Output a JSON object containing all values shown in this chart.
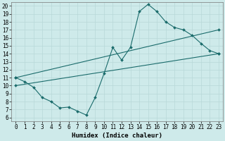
{
  "xlabel": "Humidex (Indice chaleur)",
  "bg_color": "#ceeaea",
  "grid_color": "#b8d8d8",
  "line_color": "#1a6b6b",
  "xlim": [
    -0.5,
    23.5
  ],
  "ylim": [
    5.5,
    20.5
  ],
  "xticks": [
    0,
    1,
    2,
    3,
    4,
    5,
    6,
    7,
    8,
    9,
    10,
    11,
    12,
    13,
    14,
    15,
    16,
    17,
    18,
    19,
    20,
    21,
    22,
    23
  ],
  "yticks": [
    6,
    7,
    8,
    9,
    10,
    11,
    12,
    13,
    14,
    15,
    16,
    17,
    18,
    19,
    20
  ],
  "line1_x": [
    0,
    1,
    2,
    3,
    4,
    5,
    6,
    7,
    8,
    9,
    10,
    11,
    12,
    13,
    14,
    15,
    16,
    17,
    18,
    19,
    20,
    21,
    22,
    23
  ],
  "line1_y": [
    11.0,
    10.5,
    9.8,
    8.5,
    8.0,
    7.2,
    7.3,
    6.8,
    6.3,
    8.5,
    11.5,
    14.8,
    13.2,
    14.8,
    19.3,
    20.2,
    19.3,
    18.0,
    17.3,
    17.0,
    16.3,
    15.3,
    14.4,
    14.0
  ],
  "line2_x": [
    0,
    23
  ],
  "line2_y": [
    11.0,
    17.0
  ],
  "line3_x": [
    0,
    23
  ],
  "line3_y": [
    10.0,
    14.0
  ],
  "markersize": 2.0,
  "linewidth": 0.8,
  "fontsize_tick": 5.5,
  "fontsize_xlabel": 6.5
}
